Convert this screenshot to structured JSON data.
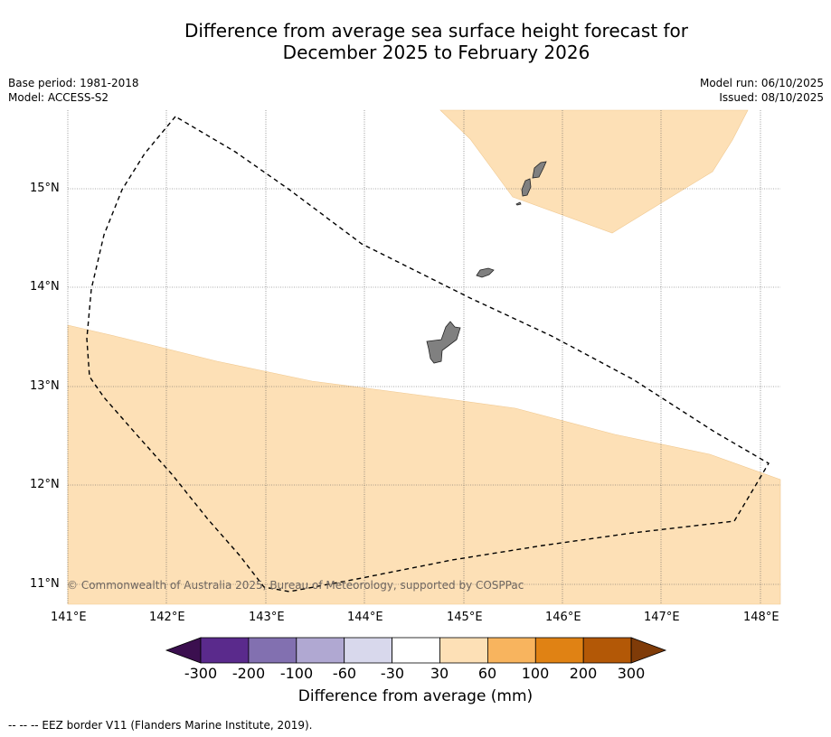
{
  "title_line1": "Difference from average sea surface height forecast for",
  "title_line2": "December 2025 to February 2026",
  "base_period": "Base period: 1981-2018",
  "model": "Model: ACCESS-S2",
  "model_run": "Model run: 06/10/2025",
  "issued": "Issued: 08/10/2025",
  "lon_labels": [
    "141°E",
    "142°E",
    "143°E",
    "144°E",
    "145°E",
    "146°E",
    "147°E",
    "148°E"
  ],
  "lat_labels": [
    "15°N",
    "14°N",
    "13°N",
    "12°N",
    "11°N"
  ],
  "copyright": "© Commonwealth of Australia 2025, Bureau of Meteorology, supported by COSPPac",
  "colorbar": {
    "labels": [
      "-300",
      "-200",
      "-100",
      "-60",
      "-30",
      "30",
      "60",
      "100",
      "200",
      "300"
    ],
    "colors": [
      "#3b0f4f",
      "#5a2a8c",
      "#8270b0",
      "#b0a8d2",
      "#d8d8ec",
      "#ffffff",
      "#fde0b6",
      "#f8b45e",
      "#e08214",
      "#b35806",
      "#7f3b08"
    ],
    "title": "Difference from average (mm)"
  },
  "footer": "--  --  -- EEZ border V11 (Flanders Marine Institute, 2019)."
}
